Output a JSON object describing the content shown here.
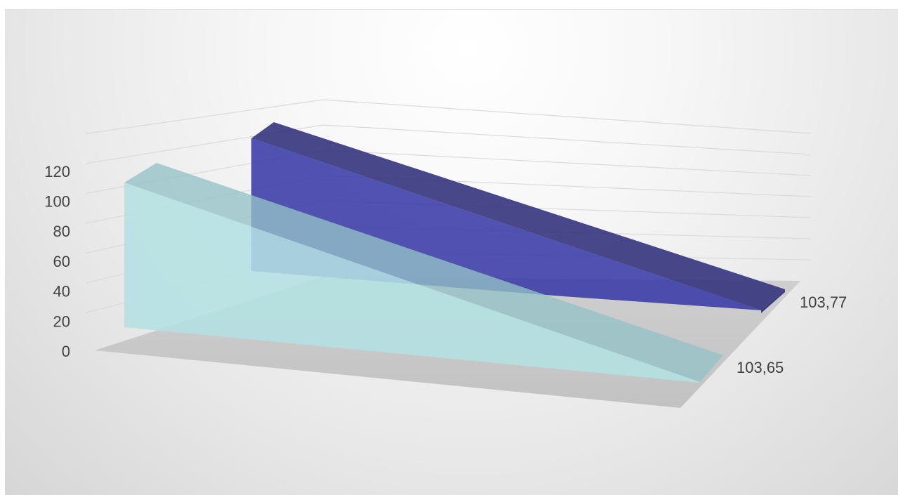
{
  "chart_data": {
    "type": "area",
    "view": "3d",
    "categories": [
      "",
      ""
    ],
    "series": [
      {
        "name": "103,77",
        "values": [
          120,
          3
        ],
        "color": "#3a3aa8"
      },
      {
        "name": "103,65",
        "values": [
          112,
          0
        ],
        "color": "#aee0e2"
      }
    ],
    "y_ticks": [
      "0",
      "20",
      "40",
      "60",
      "80",
      "100",
      "120"
    ],
    "ylim": [
      0,
      120
    ],
    "grid": true,
    "legend": "none"
  }
}
